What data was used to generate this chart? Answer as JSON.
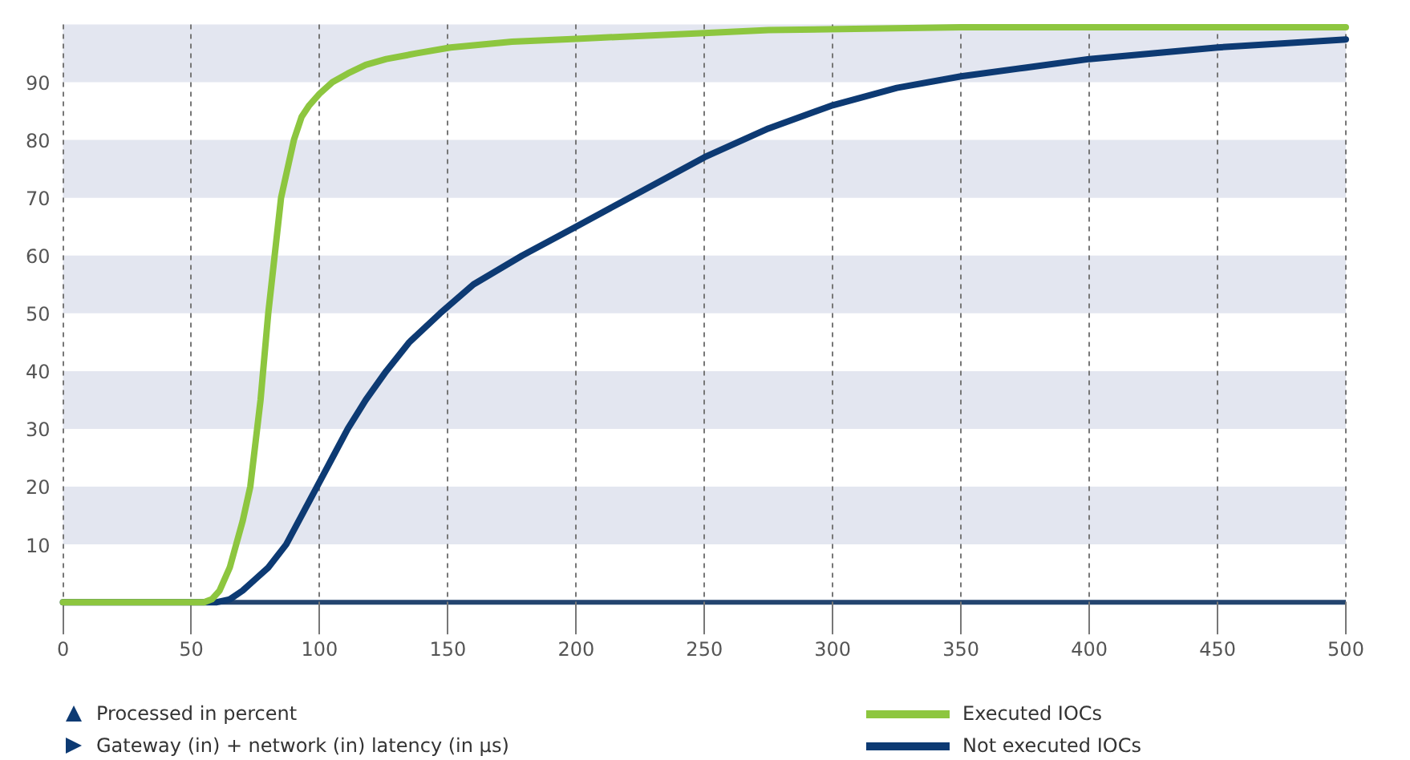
{
  "chart_data": {
    "type": "line",
    "annotations": [
      "Processed in percent",
      "Gateway (in) + network (in) latency (in µs)"
    ],
    "xlim": [
      0,
      500
    ],
    "xticks": [
      0,
      50,
      100,
      150,
      200,
      250,
      300,
      350,
      400,
      450,
      500
    ],
    "ylim": [
      0,
      100
    ],
    "yticks": [
      10,
      20,
      30,
      40,
      50,
      60,
      70,
      80,
      90
    ],
    "grid": "x",
    "legend": "bottom right",
    "marker": "none",
    "line_style": "solid",
    "bands": [
      {
        "axis": "y",
        "from": 10,
        "to": 20,
        "color": "#e3e6f0"
      },
      {
        "axis": "y",
        "from": 30,
        "to": 40,
        "color": "#e3e6f0"
      },
      {
        "axis": "y",
        "from": 50,
        "to": 60,
        "color": "#e3e6f0"
      },
      {
        "axis": "y",
        "from": 70,
        "to": 80,
        "color": "#e3e6f0"
      },
      {
        "axis": "y",
        "from": 90,
        "to": 100,
        "color": "#e3e6f0"
      }
    ],
    "series": [
      {
        "name": "Executed IOCs",
        "color": "#8dc63f",
        "x": [
          0,
          55,
          58,
          61,
          65,
          70,
          73,
          77,
          80,
          83,
          85,
          88,
          90,
          93,
          96,
          100,
          105,
          111,
          118,
          126,
          138,
          151,
          175,
          200,
          250,
          275,
          350,
          500
        ],
        "values": [
          0,
          0,
          0.5,
          2,
          6,
          14,
          20,
          35,
          50,
          62,
          70,
          76,
          80,
          84,
          86,
          88,
          90,
          91.5,
          93,
          94,
          95,
          96,
          97,
          97.5,
          98.5,
          99,
          99.5,
          99.5
        ]
      },
      {
        "name": "Not executed IOCs",
        "color": "#0d3a73",
        "x": [
          0,
          60,
          65,
          70,
          75,
          80,
          87,
          93,
          99,
          105,
          111,
          118,
          126,
          135,
          147,
          160,
          179,
          200,
          225,
          250,
          275,
          300,
          325,
          350,
          375,
          400,
          425,
          450,
          475,
          500
        ],
        "values": [
          0,
          0,
          0.5,
          2,
          4,
          6,
          10,
          15,
          20,
          25,
          30,
          35,
          40,
          45,
          50,
          55,
          60,
          65,
          71,
          77,
          82,
          86,
          89,
          91,
          92.5,
          94,
          95,
          96,
          96.7,
          97.4
        ]
      }
    ]
  }
}
